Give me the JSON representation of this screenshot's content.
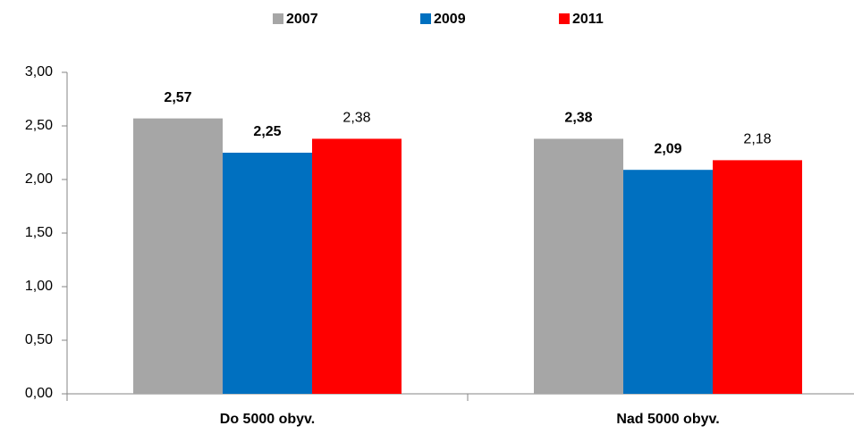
{
  "chart_data": {
    "type": "bar",
    "categories": [
      "Do 5000 obyv.",
      "Nad 5000 obyv."
    ],
    "series": [
      {
        "name": "2007",
        "color": "#a6a6a6",
        "values": [
          2.57,
          2.38
        ],
        "value_labels": [
          "2,57",
          "2,38"
        ]
      },
      {
        "name": "2009",
        "color": "#0070c0",
        "values": [
          2.25,
          2.09
        ],
        "value_labels": [
          "2,25",
          "2,09"
        ]
      },
      {
        "name": "2011",
        "color": "#ff0000",
        "values": [
          2.38,
          2.18
        ],
        "value_labels": [
          "2,38",
          "2,18"
        ]
      }
    ],
    "ylim": [
      0,
      3
    ],
    "yticks": [
      {
        "value": 0,
        "label": "0,00"
      },
      {
        "value": 0.5,
        "label": "0,50"
      },
      {
        "value": 1,
        "label": "1,00"
      },
      {
        "value": 1.5,
        "label": "1,50"
      },
      {
        "value": 2,
        "label": "2,00"
      },
      {
        "value": 2.5,
        "label": "2,50"
      },
      {
        "value": 3,
        "label": "3,00"
      }
    ],
    "legend": "top"
  }
}
